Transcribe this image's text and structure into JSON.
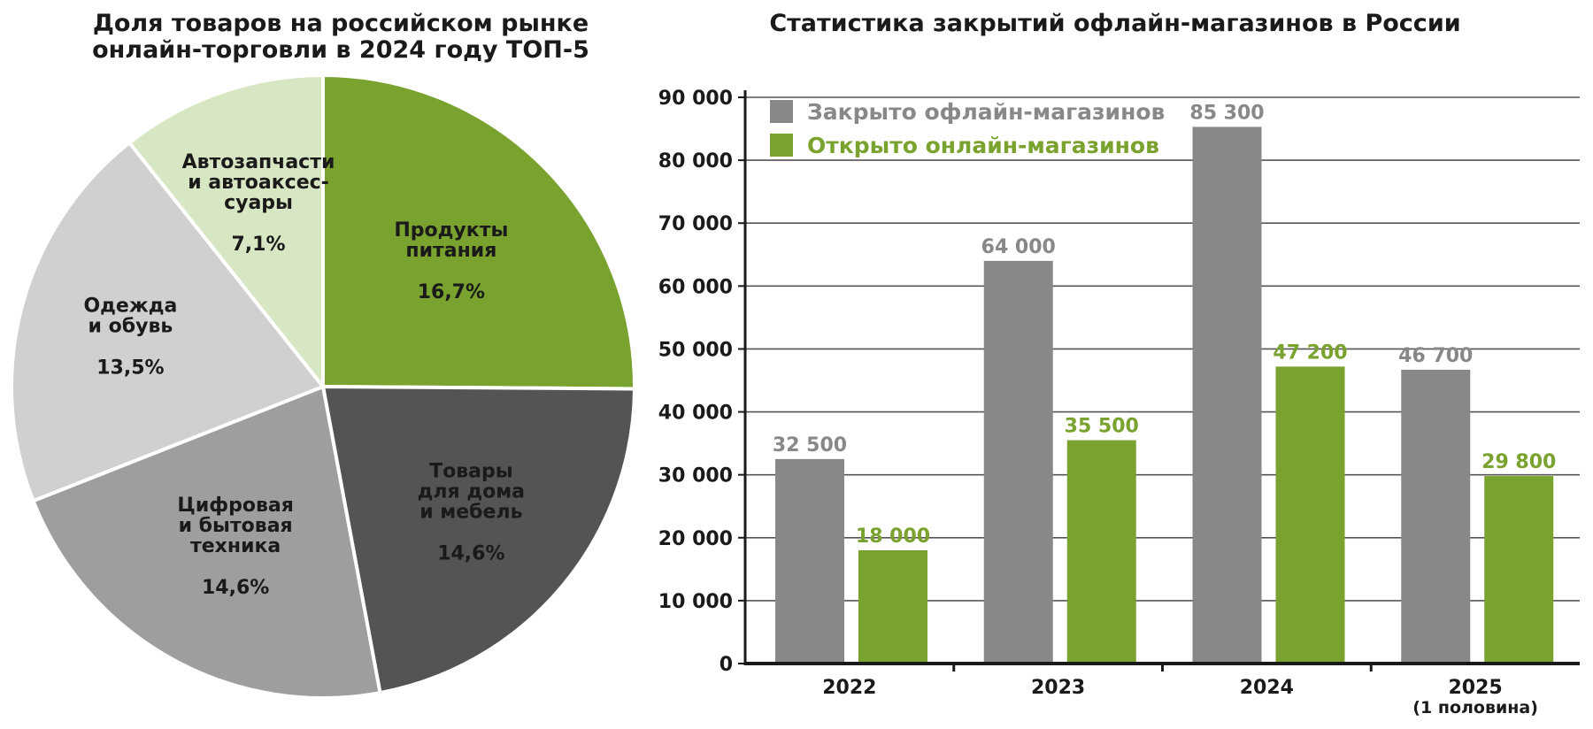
{
  "colors": {
    "green": "#7aa22e",
    "gray": "#888888",
    "dark": "#545454",
    "mid": "#9e9e9e",
    "light": "#d0d0d0",
    "pale": "#d8e7c3",
    "text": "#1a1a1a"
  },
  "chart_data": [
    {
      "type": "pie",
      "title_lines": [
        "Доля товаров на российском рынке",
        "онлайн-торговли в 2024 году ТОП-5"
      ],
      "slices": [
        {
          "label_lines": [
            "Продукты",
            "питания"
          ],
          "value_label": "16,7%",
          "value": 16.7,
          "color": "#7aa22e"
        },
        {
          "label_lines": [
            "Товары",
            "для дома",
            "и мебель"
          ],
          "value_label": "14,6%",
          "value": 14.6,
          "color": "#545454"
        },
        {
          "label_lines": [
            "Цифровая",
            "и бытовая",
            "техника"
          ],
          "value_label": "14,6%",
          "value": 14.6,
          "color": "#9e9e9e"
        },
        {
          "label_lines": [
            "Одежда",
            "и обувь"
          ],
          "value_label": "13,5%",
          "value": 13.5,
          "color": "#d0d0d0"
        },
        {
          "label_lines": [
            "Автозапчасти",
            "и автоаксес-",
            "суары"
          ],
          "value_label": "7,1%",
          "value": 7.1,
          "color": "#d8e7c3"
        }
      ]
    },
    {
      "type": "bar",
      "title": "Статистика закрытий офлайн-магазинов в России",
      "categories": [
        "2022",
        "2023",
        "2024",
        "2025"
      ],
      "category_sublabels": [
        "",
        "",
        "",
        "(1 половина)"
      ],
      "series": [
        {
          "name": "Закрыто офлайн-магазинов",
          "values": [
            32500,
            64000,
            85300,
            46700
          ],
          "value_labels": [
            "32 500",
            "64 000",
            "85 300",
            "46 700"
          ],
          "color": "#888888"
        },
        {
          "name": "Открыто онлайн-магазинов",
          "values": [
            18000,
            35500,
            47200,
            29800
          ],
          "value_labels": [
            "18 000",
            "35 500",
            "47 200",
            "29 800"
          ],
          "color": "#7aa22e"
        }
      ],
      "ylim": [
        0,
        90000
      ],
      "yticks": [
        0,
        10000,
        20000,
        30000,
        40000,
        50000,
        60000,
        70000,
        80000,
        90000
      ],
      "ytick_labels": [
        "0",
        "10 000",
        "20 000",
        "30 000",
        "40 000",
        "50 000",
        "60 000",
        "70 000",
        "80 000",
        "90 000"
      ],
      "grid": true,
      "legend": "top-left"
    }
  ]
}
